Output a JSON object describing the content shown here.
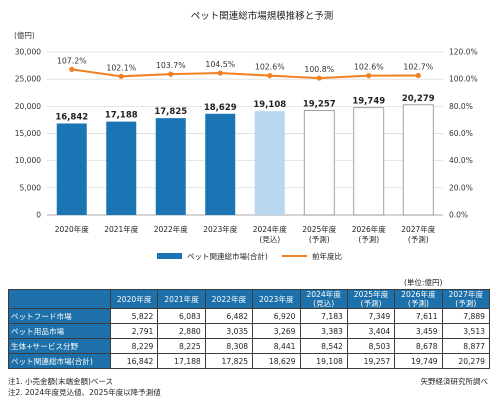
{
  "chart_data": {
    "type": "bar",
    "title": "ペット関連総市場規模推移と予測",
    "left_axis_label": "(億円)",
    "categories": [
      [
        "2020年度"
      ],
      [
        "2021年度"
      ],
      [
        "2022年度"
      ],
      [
        "2023年度"
      ],
      [
        "2024年度",
        "(見込)"
      ],
      [
        "2025年度",
        "(予測)"
      ],
      [
        "2026年度",
        "(予測)"
      ],
      [
        "2027年度",
        "(予測)"
      ]
    ],
    "ylim": [
      0,
      30000
    ],
    "y_ticks": [
      "0",
      "5,000",
      "10,000",
      "15,000",
      "20,000",
      "25,000",
      "30,000"
    ],
    "y2lim": [
      0,
      120
    ],
    "y2_ticks": [
      "0.0%",
      "20.0%",
      "40.0%",
      "60.0%",
      "80.0%",
      "100.0%",
      "120.0%"
    ],
    "grid": true,
    "legend_position": "bottom",
    "series": [
      {
        "name": "ペット関連総市場(合計)",
        "type": "bar",
        "values": [
          16842,
          17188,
          17825,
          18629,
          19108,
          19257,
          19749,
          20279
        ],
        "labels": [
          "16,842",
          "17,188",
          "17,825",
          "18,629",
          "19,108",
          "19,257",
          "19,749",
          "20,279"
        ],
        "bar_kinds": [
          "actual",
          "actual",
          "actual",
          "actual",
          "estimate",
          "forecast",
          "forecast",
          "forecast"
        ]
      },
      {
        "name": "前年度比",
        "type": "line",
        "axis": "right",
        "values": [
          107.2,
          102.1,
          103.7,
          104.5,
          102.6,
          100.8,
          102.6,
          102.7
        ],
        "labels": [
          "107.2%",
          "102.1%",
          "103.7%",
          "104.5%",
          "102.6%",
          "100.8%",
          "102.6%",
          "102.7%"
        ]
      }
    ],
    "colors": {
      "actual": "#1b74b4",
      "estimate": "#b8d7ee",
      "forecast_fill": "#ffffff",
      "forecast_stroke": "#8a8a8a",
      "line": "#f08122",
      "grid": "#d6d6d6"
    }
  },
  "table": {
    "unit": "(単位:億円)",
    "headers": [
      [
        ""
      ],
      [
        "2020年度"
      ],
      [
        "2021年度"
      ],
      [
        "2022年度"
      ],
      [
        "2023年度"
      ],
      [
        "2024年度",
        "(見込)"
      ],
      [
        "2025年度",
        "(予測)"
      ],
      [
        "2026年度",
        "(予測)"
      ],
      [
        "2027年度",
        "(予測)"
      ]
    ],
    "rows": [
      {
        "label": "ペットフード市場",
        "values": [
          "5,822",
          "6,083",
          "6,482",
          "6,920",
          "7,183",
          "7,349",
          "7,611",
          "7,889"
        ]
      },
      {
        "label": "ペット用品市場",
        "values": [
          "2,791",
          "2,880",
          "3,035",
          "3,269",
          "3,383",
          "3,404",
          "3,459",
          "3,513"
        ]
      },
      {
        "label": "生体+サービス分野",
        "values": [
          "8,229",
          "8,225",
          "8,308",
          "8,441",
          "8,542",
          "8,503",
          "8,678",
          "8,877"
        ]
      },
      {
        "label": "ペット関連総市場(合計)",
        "values": [
          "16,842",
          "17,188",
          "17,825",
          "18,629",
          "19,108",
          "19,257",
          "19,749",
          "20,279"
        ]
      }
    ]
  },
  "notes": {
    "note1": "注1. 小売金額(末端金額)ベース",
    "note2": "注2. 2024年度見込値、2025年度以降予測値",
    "source": "矢野経済研究所調べ"
  }
}
